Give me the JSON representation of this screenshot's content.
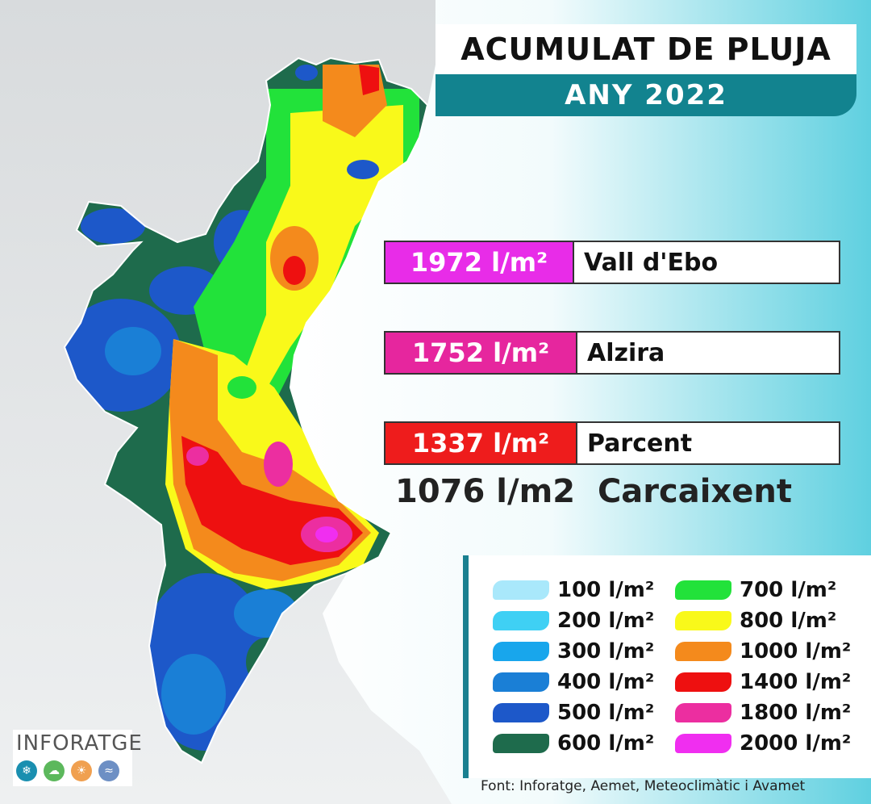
{
  "title": "ACUMULAT DE PLUJA",
  "subtitle": "ANY 2022",
  "records": [
    {
      "value": "1972 l/m²",
      "location": "Vall d'Ebo",
      "color": "#e82ce8"
    },
    {
      "value": "1752 l/m²",
      "location": "Alzira",
      "color": "#e6269e"
    },
    {
      "value": "1337 l/m²",
      "location": "Parcent",
      "color": "#ee1c1c"
    }
  ],
  "extra_record": {
    "value": "1076 l/m2",
    "location": "Carcaixent"
  },
  "legend": [
    {
      "label": "100 l/m²",
      "color": "#a9e8fb"
    },
    {
      "label": "200 l/m²",
      "color": "#3fd0f4"
    },
    {
      "label": "300 l/m²",
      "color": "#18a6ec"
    },
    {
      "label": "400 l/m²",
      "color": "#1a7fd6"
    },
    {
      "label": "500 l/m²",
      "color": "#1d58c9"
    },
    {
      "label": "600 l/m²",
      "color": "#1e6b4c"
    },
    {
      "label": "700 l/m²",
      "color": "#22e23a"
    },
    {
      "label": "800 l/m²",
      "color": "#f9f91a"
    },
    {
      "label": "1000 l/m²",
      "color": "#f48a1c"
    },
    {
      "label": "1400 l/m²",
      "color": "#ee1010"
    },
    {
      "label": "1800 l/m²",
      "color": "#ec2ea0"
    },
    {
      "label": "2000 l/m²",
      "color": "#f02ef0"
    }
  ],
  "source": "Font: Inforatge, Aemet, Meteoclimàtic i Avamet",
  "logo": {
    "text": "INFORATGE",
    "icons": [
      "snowflake-icon",
      "cloud-icon",
      "sun-icon",
      "wind-icon"
    ]
  }
}
